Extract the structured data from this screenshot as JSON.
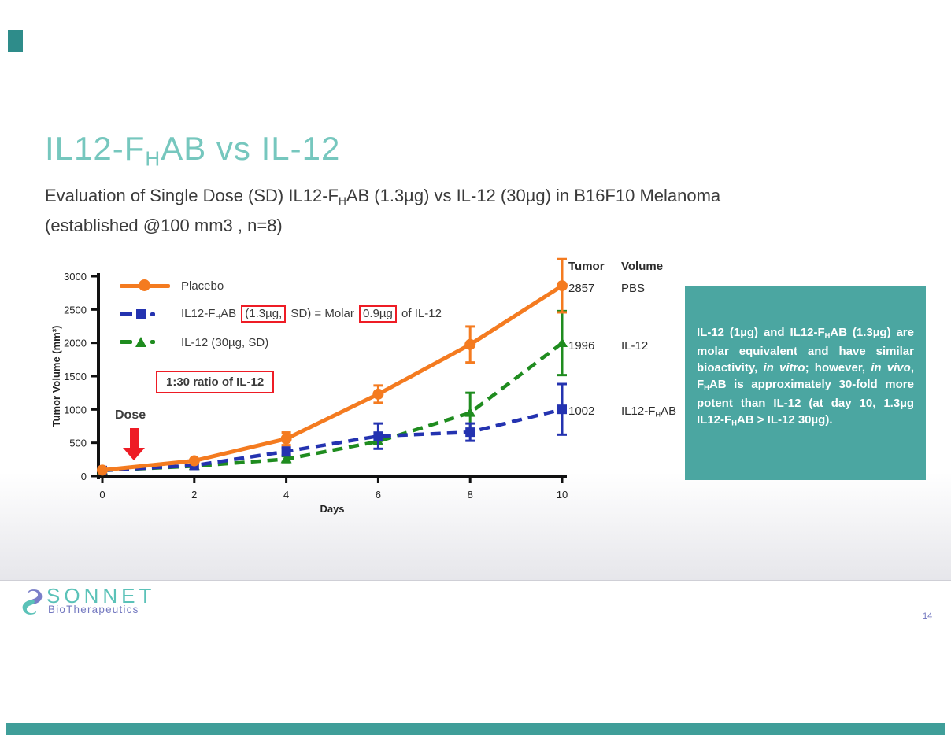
{
  "slide": {
    "title_segments": [
      {
        "t": "IL12-F"
      },
      {
        "t": "H",
        "s": "sub"
      },
      {
        "t": "AB vs IL-12"
      }
    ],
    "subtitle_segments": [
      {
        "t": "Evaluation of Single Dose (SD) IL12-F"
      },
      {
        "t": "H",
        "s": "sub"
      },
      {
        "t": "AB (1.3µg) vs IL-12 (30µg) in B16F10 Melanoma "
      },
      {
        "s": "br"
      },
      {
        "t": "(established @100 mm3 , n=8)"
      }
    ],
    "page_number": "14"
  },
  "logo": {
    "name": "SONNET",
    "tagline": "BioTherapeutics"
  },
  "annotations": {
    "dose_label": "Dose",
    "ratio_box": "1:30 ratio of IL-12"
  },
  "legend": {
    "row1_label": "Placebo",
    "row2_segments": [
      {
        "t": "IL12-F"
      },
      {
        "t": "H",
        "s": "sub"
      },
      {
        "t": "AB "
      },
      {
        "t": "(1.3µg,",
        "s": "redbox"
      },
      {
        "t": " SD)  =  Molar "
      },
      {
        "t": "0.9µg",
        "s": "redbox"
      },
      {
        "t": " of IL-12"
      }
    ],
    "row3_label": "IL-12 (30µg, SD)"
  },
  "side_table": {
    "headers": [
      "Tumor",
      "Volume"
    ],
    "rows": [
      {
        "value": "2857",
        "label_segments": [
          {
            "t": "PBS"
          }
        ]
      },
      {
        "value": "1996",
        "label_segments": [
          {
            "t": "IL-12"
          }
        ]
      },
      {
        "value": "1002",
        "label_segments": [
          {
            "t": "IL12-F"
          },
          {
            "t": "H",
            "s": "sub"
          },
          {
            "t": "AB"
          }
        ]
      }
    ]
  },
  "callout": {
    "segments": [
      {
        "t": "IL-12 (1µg) and IL12-F"
      },
      {
        "t": "H",
        "s": "sub"
      },
      {
        "t": "AB (1.3µg) are molar equivalent and have similar bioactivity, "
      },
      {
        "t": "in vitro",
        "s": "it"
      },
      {
        "t": "; however, "
      },
      {
        "t": "in vivo",
        "s": "it"
      },
      {
        "t": ", F"
      },
      {
        "t": "H",
        "s": "sub"
      },
      {
        "t": "AB is approximately 30-fold more potent than IL-12  (at day 10, 1.3µg IL12-F"
      },
      {
        "t": "H",
        "s": "sub"
      },
      {
        "t": "AB  >  IL-12 30µg)."
      }
    ],
    "background": "#4ba6a1",
    "text_color": "#ffffff"
  },
  "chart_data": {
    "type": "line",
    "x": [
      0,
      2,
      4,
      6,
      8,
      10
    ],
    "xlabel": "Days",
    "ylabel": "Tumor Volume (mm³)",
    "ylim": [
      0,
      3000
    ],
    "yticks": [
      0,
      500,
      1000,
      1500,
      2000,
      2500,
      3000
    ],
    "grid": false,
    "legend_position": "top-left-inside",
    "series": [
      {
        "name": "Placebo",
        "color": "#f47b20",
        "style": "solid",
        "marker": "circle",
        "values": [
          90,
          230,
          560,
          1230,
          1975,
          2857
        ],
        "errors": [
          0,
          0,
          95,
          130,
          270,
          400
        ]
      },
      {
        "name": "IL12-FHAB (1.3µg, SD) = Molar 0.9µg of IL-12",
        "color": "#2433b0",
        "style": "dashed",
        "marker": "square",
        "values": [
          85,
          160,
          370,
          600,
          660,
          1002
        ],
        "errors": [
          0,
          0,
          60,
          190,
          130,
          380
        ]
      },
      {
        "name": "IL-12 (30µg, SD)",
        "color": "#1f8c1f",
        "style": "dashed",
        "marker": "triangle",
        "values": [
          85,
          150,
          255,
          520,
          950,
          1996
        ],
        "errors": [
          0,
          0,
          45,
          0,
          300,
          480
        ]
      }
    ],
    "day10_endpoint_table": {
      "PBS": 2857,
      "IL-12": 1996,
      "IL12-FHAB": 1002
    }
  },
  "colors": {
    "title_teal": "#76c7be",
    "callout_teal": "#4ba6a1",
    "accent_teal_dark": "#2e8c8a",
    "red_annotation": "#ee1c25",
    "logo_teal": "#5bc2b8",
    "logo_purple": "#7479c0"
  }
}
